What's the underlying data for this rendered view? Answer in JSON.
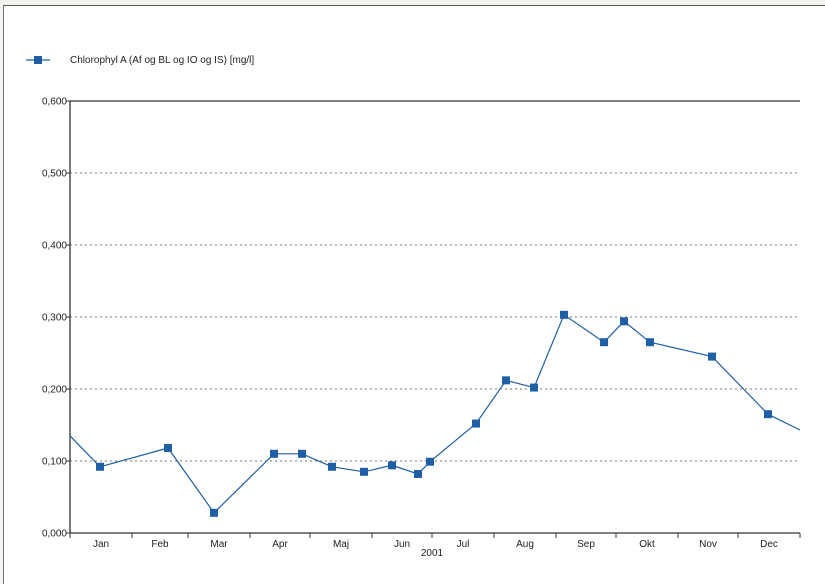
{
  "chart_data": {
    "type": "line",
    "legend": {
      "label": "Chlorophyl A (Af og BL og IO og IS) [mg/l]",
      "placement": "top-left"
    },
    "xlabel": "2001",
    "ylabel": "",
    "ylim": [
      0,
      0.6
    ],
    "y_ticks": [
      "0,000",
      "0,100",
      "0,200",
      "0,300",
      "0,400",
      "0,500",
      "0,600"
    ],
    "y_tick_values": [
      0,
      0.1,
      0.2,
      0.3,
      0.4,
      0.5,
      0.6
    ],
    "x_tick_labels": [
      "Jan",
      "Feb",
      "Mar",
      "Apr",
      "Maj",
      "Jun",
      "Jul",
      "Aug",
      "Sep",
      "Okt",
      "Nov",
      "Dec"
    ],
    "xlim": [
      "2001-01-01",
      "2002-01-01"
    ],
    "grid": "horizontal dotted",
    "series": [
      {
        "name": "Chlorophyl A (Af og BL og IO og IS) [mg/l]",
        "color": "#1f5fa6",
        "points": [
          {
            "x": "2001-01-01",
            "y": 0.135,
            "marker": false
          },
          {
            "x": "2001-01-16",
            "y": 0.092,
            "marker": true
          },
          {
            "x": "2001-02-19",
            "y": 0.118,
            "marker": true
          },
          {
            "x": "2001-03-14",
            "y": 0.028,
            "marker": true
          },
          {
            "x": "2001-04-13",
            "y": 0.11,
            "marker": true
          },
          {
            "x": "2001-04-27",
            "y": 0.11,
            "marker": true
          },
          {
            "x": "2001-05-12",
            "y": 0.092,
            "marker": true
          },
          {
            "x": "2001-05-28",
            "y": 0.085,
            "marker": true
          },
          {
            "x": "2001-06-11",
            "y": 0.094,
            "marker": true
          },
          {
            "x": "2001-06-24",
            "y": 0.082,
            "marker": true
          },
          {
            "x": "2001-06-30",
            "y": 0.099,
            "marker": true
          },
          {
            "x": "2001-07-23",
            "y": 0.152,
            "marker": true
          },
          {
            "x": "2001-08-07",
            "y": 0.212,
            "marker": true
          },
          {
            "x": "2001-08-21",
            "y": 0.202,
            "marker": true
          },
          {
            "x": "2001-09-05",
            "y": 0.303,
            "marker": true
          },
          {
            "x": "2001-09-25",
            "y": 0.265,
            "marker": true
          },
          {
            "x": "2001-10-05",
            "y": 0.294,
            "marker": true
          },
          {
            "x": "2001-10-18",
            "y": 0.265,
            "marker": true
          },
          {
            "x": "2001-11-18",
            "y": 0.245,
            "marker": true
          },
          {
            "x": "2001-12-16",
            "y": 0.165,
            "marker": true
          },
          {
            "x": "2002-01-01",
            "y": 0.143,
            "marker": false
          }
        ]
      }
    ]
  }
}
